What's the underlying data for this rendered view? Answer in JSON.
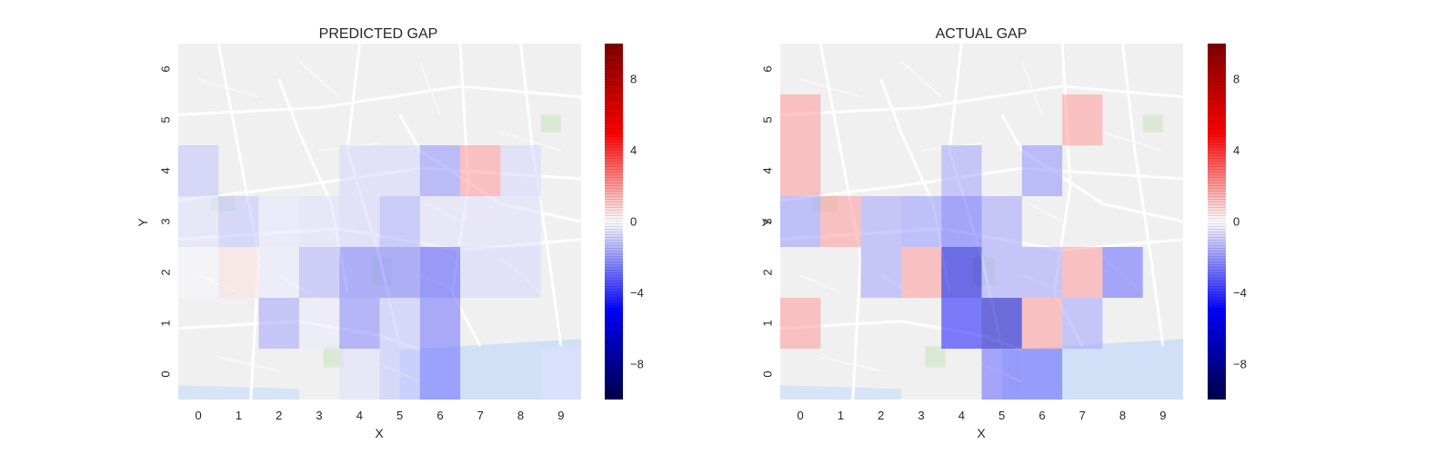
{
  "chart_data": [
    {
      "type": "heatmap",
      "title": "PREDICTED GAP",
      "xlabel": "X",
      "ylabel": "Y",
      "x_ticks": [
        "0",
        "1",
        "2",
        "3",
        "4",
        "5",
        "6",
        "7",
        "8",
        "9"
      ],
      "y_ticks": [
        "0",
        "1",
        "2",
        "3",
        "4",
        "5",
        "6"
      ],
      "background": "street map",
      "colormap": "seismic",
      "vmin": -10,
      "vmax": 10,
      "colorbar_ticks": [
        "8",
        "4",
        "0",
        "−4",
        "−8"
      ],
      "colorbar_tick_values": [
        8,
        4,
        0,
        -4,
        -8
      ],
      "cells": [
        {
          "x": 0,
          "y": 4,
          "v": -1.2
        },
        {
          "x": 0,
          "y": 3,
          "v": -0.6
        },
        {
          "x": 1,
          "y": 3,
          "v": -1.2
        },
        {
          "x": 2,
          "y": 3,
          "v": -0.5
        },
        {
          "x": 3,
          "y": 3,
          "v": -0.6
        },
        {
          "x": 4,
          "y": 3,
          "v": -0.8
        },
        {
          "x": 5,
          "y": 3,
          "v": -1.6
        },
        {
          "x": 6,
          "y": 3,
          "v": -0.6
        },
        {
          "x": 7,
          "y": 3,
          "v": -0.6
        },
        {
          "x": 8,
          "y": 3,
          "v": -0.6
        },
        {
          "x": 4,
          "y": 4,
          "v": -0.8
        },
        {
          "x": 5,
          "y": 4,
          "v": -0.8
        },
        {
          "x": 6,
          "y": 4,
          "v": -2.2
        },
        {
          "x": 7,
          "y": 4,
          "v": 2.0
        },
        {
          "x": 8,
          "y": 4,
          "v": -0.8
        },
        {
          "x": 0,
          "y": 2,
          "v": -0.2
        },
        {
          "x": 1,
          "y": 2,
          "v": 0.6
        },
        {
          "x": 2,
          "y": 2,
          "v": -0.4
        },
        {
          "x": 3,
          "y": 2,
          "v": -1.5
        },
        {
          "x": 4,
          "y": 2,
          "v": -2.6
        },
        {
          "x": 5,
          "y": 2,
          "v": -2.6
        },
        {
          "x": 6,
          "y": 2,
          "v": -3.4
        },
        {
          "x": 7,
          "y": 2,
          "v": -0.8
        },
        {
          "x": 8,
          "y": 2,
          "v": -0.8
        },
        {
          "x": 2,
          "y": 1,
          "v": -1.8
        },
        {
          "x": 3,
          "y": 1,
          "v": -0.4
        },
        {
          "x": 4,
          "y": 1,
          "v": -2.4
        },
        {
          "x": 5,
          "y": 1,
          "v": -1.2
        },
        {
          "x": 6,
          "y": 1,
          "v": -2.8
        },
        {
          "x": 4,
          "y": 0,
          "v": -0.6
        },
        {
          "x": 5,
          "y": 0,
          "v": -1.2
        },
        {
          "x": 6,
          "y": 0,
          "v": -2.8
        },
        {
          "x": 9,
          "y": 0,
          "v": -0.6
        }
      ]
    },
    {
      "type": "heatmap",
      "title": "ACTUAL GAP",
      "xlabel": "X",
      "ylabel": "Y",
      "x_ticks": [
        "0",
        "1",
        "2",
        "3",
        "4",
        "5",
        "6",
        "7",
        "8",
        "9"
      ],
      "y_ticks": [
        "0",
        "1",
        "2",
        "3",
        "4",
        "5",
        "6"
      ],
      "background": "street map",
      "colormap": "seismic",
      "vmin": -10,
      "vmax": 10,
      "colorbar_ticks": [
        "8",
        "4",
        "0",
        "−4",
        "−8"
      ],
      "colorbar_tick_values": [
        8,
        4,
        0,
        -4,
        -8
      ],
      "cells": [
        {
          "x": 0,
          "y": 5,
          "v": 2.0
        },
        {
          "x": 0,
          "y": 4,
          "v": 2.0
        },
        {
          "x": 0,
          "y": 3,
          "v": -2.0
        },
        {
          "x": 1,
          "y": 3,
          "v": 2.0
        },
        {
          "x": 2,
          "y": 3,
          "v": -1.8
        },
        {
          "x": 3,
          "y": 3,
          "v": -2.0
        },
        {
          "x": 4,
          "y": 3,
          "v": -3.0
        },
        {
          "x": 5,
          "y": 3,
          "v": -1.8
        },
        {
          "x": 4,
          "y": 4,
          "v": -1.8
        },
        {
          "x": 6,
          "y": 4,
          "v": -2.2
        },
        {
          "x": 7,
          "y": 5,
          "v": 2.0
        },
        {
          "x": 2,
          "y": 2,
          "v": -1.8
        },
        {
          "x": 3,
          "y": 2,
          "v": 2.0
        },
        {
          "x": 4,
          "y": 2,
          "v": -6.0
        },
        {
          "x": 5,
          "y": 2,
          "v": -1.8
        },
        {
          "x": 6,
          "y": 2,
          "v": -1.8
        },
        {
          "x": 7,
          "y": 2,
          "v": 2.0
        },
        {
          "x": 8,
          "y": 2,
          "v": -3.0
        },
        {
          "x": 0,
          "y": 1,
          "v": 2.0
        },
        {
          "x": 4,
          "y": 1,
          "v": -4.5
        },
        {
          "x": 5,
          "y": 1,
          "v": -6.5
        },
        {
          "x": 6,
          "y": 1,
          "v": 2.0
        },
        {
          "x": 7,
          "y": 1,
          "v": -1.8
        },
        {
          "x": 5,
          "y": 0,
          "v": -3.0
        },
        {
          "x": 6,
          "y": 0,
          "v": -3.0
        }
      ]
    }
  ]
}
